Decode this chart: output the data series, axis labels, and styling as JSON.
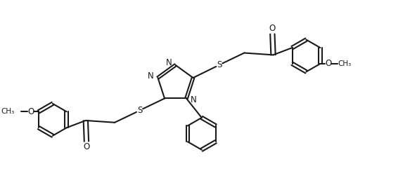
{
  "background_color": "#ffffff",
  "line_color": "#1a1a1a",
  "line_width": 1.5,
  "text_color": "#1a1a1a",
  "font_size": 8.5,
  "figsize": [
    5.83,
    2.44
  ],
  "dpi": 100,
  "xlim": [
    0,
    11.5
  ],
  "ylim": [
    0,
    4.4
  ]
}
